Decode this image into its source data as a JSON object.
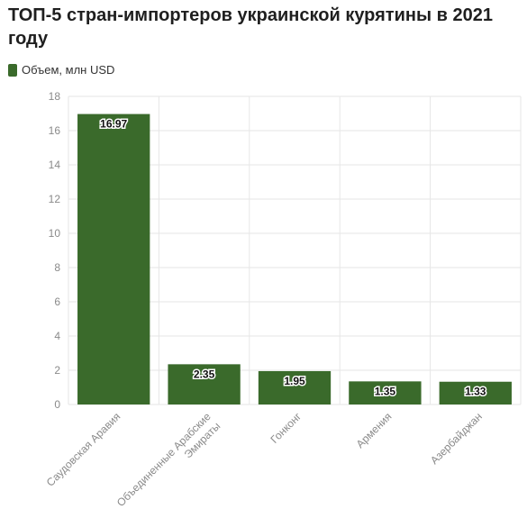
{
  "title": "ТОП-5 стран-импортеров украинской курятины в 2021 году",
  "colors": {
    "bar": "#3a6a2b",
    "grid": "#e6e6e6",
    "axis_text": "#8a8a8a"
  },
  "chart_data": {
    "type": "bar",
    "title": "ТОП-5 стран-импортеров украинской курятины в 2021 году",
    "categories": [
      "Саудовская Аравия",
      "Объединенные Арабские Эмираты",
      "Гонконг",
      "Армения",
      "Азербайджан"
    ],
    "category_labels": [
      [
        "Саудовская Аравия"
      ],
      [
        "Объединенные Арабские",
        "Эмираты"
      ],
      [
        "Гонконг"
      ],
      [
        "Армения"
      ],
      [
        "Азербайджан"
      ]
    ],
    "series": [
      {
        "name": "Объем, млн USD",
        "values": [
          16.97,
          2.35,
          1.95,
          1.35,
          1.33
        ]
      }
    ],
    "data_labels": [
      "16.97",
      "2.35",
      "1.95",
      "1.35",
      "1.33"
    ],
    "yticks": [
      0,
      2,
      4,
      6,
      8,
      10,
      12,
      14,
      16,
      18
    ],
    "ylim": [
      0,
      18
    ],
    "xlabel": "",
    "ylabel": "",
    "grid": true,
    "legend_position": "top-left"
  }
}
